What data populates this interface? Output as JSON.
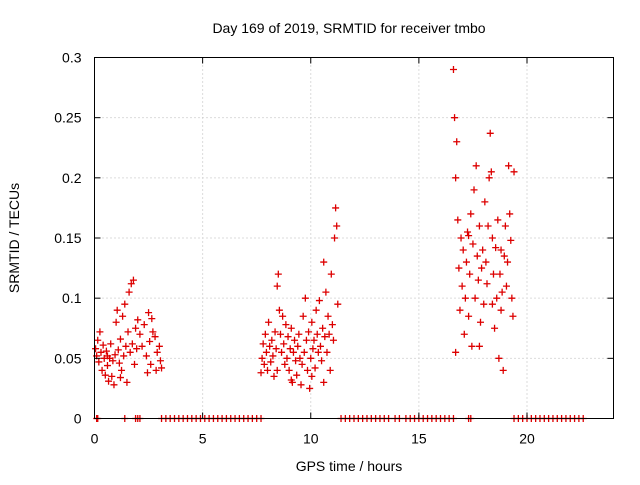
{
  "chart_data": {
    "type": "scatter",
    "title": "Day 169 of 2019, SRMTID for receiver tmbo",
    "xlabel": "GPS time / hours",
    "ylabel": "SRMTID / TECUs",
    "xlim": [
      0,
      24
    ],
    "ylim": [
      0,
      0.3
    ],
    "x_ticks": [
      0,
      5,
      10,
      15,
      20
    ],
    "x_tick_labels": [
      "0",
      "5",
      "10",
      "15",
      "20"
    ],
    "y_ticks": [
      0,
      0.05,
      0.1,
      0.15,
      0.2,
      0.25,
      0.3
    ],
    "y_tick_labels": [
      "0",
      "0.05",
      "0.1",
      "0.15",
      "0.2",
      "0.25",
      "0.3"
    ],
    "grid": true,
    "marker": "+",
    "color": "#dd0000",
    "series": [
      {
        "name": "SRMTID",
        "points": [
          [
            0.05,
            0.058
          ],
          [
            0.1,
            0.052
          ],
          [
            0.15,
            0.065
          ],
          [
            0.2,
            0.047
          ],
          [
            0.25,
            0.072
          ],
          [
            0.3,
            0.055
          ],
          [
            0.35,
            0.04
          ],
          [
            0.4,
            0.061
          ],
          [
            0.45,
            0.05
          ],
          [
            0.5,
            0.036
          ],
          [
            0.55,
            0.056
          ],
          [
            0.6,
            0.044
          ],
          [
            0.65,
            0.031
          ],
          [
            0.7,
            0.05
          ],
          [
            0.75,
            0.062
          ],
          [
            0.8,
            0.035
          ],
          [
            0.85,
            0.048
          ],
          [
            0.9,
            0.028
          ],
          [
            0.95,
            0.053
          ],
          [
            1.0,
            0.08
          ],
          [
            1.05,
            0.09
          ],
          [
            1.1,
            0.057
          ],
          [
            1.15,
            0.046
          ],
          [
            1.2,
            0.066
          ],
          [
            1.25,
            0.04
          ],
          [
            1.3,
            0.085
          ],
          [
            1.35,
            0.052
          ],
          [
            1.4,
            0.095
          ],
          [
            1.45,
            0.06
          ],
          [
            1.5,
            0.03
          ],
          [
            1.55,
            0.072
          ],
          [
            1.6,
            0.105
          ],
          [
            1.65,
            0.055
          ],
          [
            1.7,
            0.112
          ],
          [
            1.75,
            0.062
          ],
          [
            1.8,
            0.115
          ],
          [
            1.85,
            0.045
          ],
          [
            1.9,
            0.075
          ],
          [
            1.95,
            0.058
          ],
          [
            2.0,
            0.082
          ],
          [
            2.1,
            0.07
          ],
          [
            2.2,
            0.06
          ],
          [
            2.3,
            0.078
          ],
          [
            2.4,
            0.052
          ],
          [
            2.5,
            0.088
          ],
          [
            2.55,
            0.064
          ],
          [
            2.6,
            0.045
          ],
          [
            2.7,
            0.072
          ],
          [
            2.8,
            0.068
          ],
          [
            2.9,
            0.055
          ],
          [
            3.0,
            0.06
          ],
          [
            3.05,
            0.048
          ],
          [
            3.1,
            0.042
          ],
          [
            0.6,
            0.052
          ],
          [
            1.2,
            0.034
          ],
          [
            2.45,
            0.038
          ],
          [
            2.65,
            0.083
          ],
          [
            2.85,
            0.04
          ],
          [
            7.7,
            0.038
          ],
          [
            7.75,
            0.05
          ],
          [
            7.8,
            0.062
          ],
          [
            7.85,
            0.045
          ],
          [
            7.9,
            0.07
          ],
          [
            7.95,
            0.055
          ],
          [
            8.0,
            0.04
          ],
          [
            8.05,
            0.08
          ],
          [
            8.1,
            0.06
          ],
          [
            8.15,
            0.047
          ],
          [
            8.2,
            0.065
          ],
          [
            8.25,
            0.052
          ],
          [
            8.3,
            0.035
          ],
          [
            8.35,
            0.072
          ],
          [
            8.4,
            0.058
          ],
          [
            8.45,
            0.11
          ],
          [
            8.5,
            0.12
          ],
          [
            8.55,
            0.09
          ],
          [
            8.6,
            0.07
          ],
          [
            8.65,
            0.055
          ],
          [
            8.7,
            0.085
          ],
          [
            8.75,
            0.062
          ],
          [
            8.8,
            0.045
          ],
          [
            8.85,
            0.078
          ],
          [
            8.9,
            0.05
          ],
          [
            8.95,
            0.068
          ],
          [
            9.0,
            0.04
          ],
          [
            9.05,
            0.058
          ],
          [
            9.1,
            0.075
          ],
          [
            9.15,
            0.03
          ],
          [
            9.2,
            0.055
          ],
          [
            9.25,
            0.065
          ],
          [
            9.3,
            0.048
          ],
          [
            9.35,
            0.036
          ],
          [
            9.4,
            0.06
          ],
          [
            9.45,
            0.07
          ],
          [
            9.5,
            0.05
          ],
          [
            9.55,
            0.028
          ],
          [
            9.6,
            0.045
          ],
          [
            9.65,
            0.085
          ],
          [
            9.7,
            0.055
          ],
          [
            9.75,
            0.1
          ],
          [
            9.8,
            0.065
          ],
          [
            9.85,
            0.04
          ],
          [
            9.9,
            0.072
          ],
          [
            9.95,
            0.025
          ],
          [
            10.0,
            0.05
          ],
          [
            10.05,
            0.08
          ],
          [
            10.1,
            0.058
          ],
          [
            10.15,
            0.065
          ],
          [
            10.2,
            0.042
          ],
          [
            10.25,
            0.09
          ],
          [
            10.3,
            0.07
          ],
          [
            10.35,
            0.055
          ],
          [
            10.4,
            0.098
          ],
          [
            10.45,
            0.06
          ],
          [
            10.5,
            0.048
          ],
          [
            10.55,
            0.075
          ],
          [
            10.6,
            0.13
          ],
          [
            10.65,
            0.068
          ],
          [
            10.7,
            0.105
          ],
          [
            10.75,
            0.055
          ],
          [
            10.8,
            0.085
          ],
          [
            10.85,
            0.07
          ],
          [
            10.9,
            0.04
          ],
          [
            10.95,
            0.12
          ],
          [
            11.0,
            0.078
          ],
          [
            11.05,
            0.065
          ],
          [
            11.1,
            0.15
          ],
          [
            11.15,
            0.175
          ],
          [
            11.2,
            0.16
          ],
          [
            11.25,
            0.095
          ],
          [
            8.45,
            0.04
          ],
          [
            9.1,
            0.032
          ],
          [
            10.05,
            0.035
          ],
          [
            10.6,
            0.03
          ],
          [
            16.6,
            0.29
          ],
          [
            16.65,
            0.25
          ],
          [
            16.7,
            0.2
          ],
          [
            16.75,
            0.23
          ],
          [
            16.8,
            0.165
          ],
          [
            16.85,
            0.125
          ],
          [
            16.9,
            0.09
          ],
          [
            16.95,
            0.15
          ],
          [
            17.0,
            0.11
          ],
          [
            17.05,
            0.14
          ],
          [
            17.1,
            0.07
          ],
          [
            17.15,
            0.1
          ],
          [
            17.2,
            0.13
          ],
          [
            17.25,
            0.155
          ],
          [
            17.3,
            0.085
          ],
          [
            17.35,
            0.12
          ],
          [
            17.4,
            0.17
          ],
          [
            17.45,
            0.06
          ],
          [
            17.5,
            0.145
          ],
          [
            17.55,
            0.19
          ],
          [
            17.6,
            0.1
          ],
          [
            17.65,
            0.21
          ],
          [
            17.7,
            0.135
          ],
          [
            17.75,
            0.115
          ],
          [
            17.8,
            0.16
          ],
          [
            17.85,
            0.08
          ],
          [
            17.9,
            0.125
          ],
          [
            17.95,
            0.14
          ],
          [
            18.0,
            0.095
          ],
          [
            18.05,
            0.18
          ],
          [
            18.1,
            0.13
          ],
          [
            18.15,
            0.112
          ],
          [
            18.2,
            0.16
          ],
          [
            18.25,
            0.2
          ],
          [
            18.3,
            0.237
          ],
          [
            18.35,
            0.205
          ],
          [
            18.4,
            0.15
          ],
          [
            18.45,
            0.12
          ],
          [
            18.5,
            0.075
          ],
          [
            18.55,
            0.142
          ],
          [
            18.6,
            0.1
          ],
          [
            18.65,
            0.165
          ],
          [
            18.7,
            0.05
          ],
          [
            18.75,
            0.12
          ],
          [
            18.8,
            0.09
          ],
          [
            18.85,
            0.105
          ],
          [
            18.9,
            0.04
          ],
          [
            18.95,
            0.135
          ],
          [
            19.0,
            0.16
          ],
          [
            19.05,
            0.11
          ],
          [
            19.1,
            0.13
          ],
          [
            19.15,
            0.21
          ],
          [
            19.2,
            0.17
          ],
          [
            19.25,
            0.148
          ],
          [
            19.3,
            0.1
          ],
          [
            19.35,
            0.085
          ],
          [
            19.4,
            0.205
          ],
          [
            16.7,
            0.055
          ],
          [
            17.3,
            0.152
          ],
          [
            17.8,
            0.06
          ],
          [
            18.4,
            0.095
          ],
          [
            18.8,
            0.14
          ],
          [
            0.1,
            0.0
          ],
          [
            0.15,
            0.0
          ],
          [
            1.4,
            0.0
          ],
          [
            1.9,
            0.0
          ],
          [
            2.0,
            0.0
          ],
          [
            2.1,
            0.0
          ],
          [
            3.1,
            0.0
          ],
          [
            3.3,
            0.0
          ],
          [
            3.5,
            0.0
          ],
          [
            3.7,
            0.0
          ],
          [
            3.9,
            0.0
          ],
          [
            4.1,
            0.0
          ],
          [
            4.3,
            0.0
          ],
          [
            4.5,
            0.0
          ],
          [
            4.7,
            0.0
          ],
          [
            4.9,
            0.0
          ],
          [
            5.1,
            0.0
          ],
          [
            5.3,
            0.0
          ],
          [
            5.5,
            0.0
          ],
          [
            5.7,
            0.0
          ],
          [
            5.9,
            0.0
          ],
          [
            6.1,
            0.0
          ],
          [
            6.3,
            0.0
          ],
          [
            6.5,
            0.0
          ],
          [
            6.7,
            0.0
          ],
          [
            6.9,
            0.0
          ],
          [
            7.1,
            0.0
          ],
          [
            7.3,
            0.0
          ],
          [
            7.5,
            0.0
          ],
          [
            7.7,
            0.0
          ],
          [
            11.4,
            0.0
          ],
          [
            11.6,
            0.0
          ],
          [
            11.8,
            0.0
          ],
          [
            12.0,
            0.0
          ],
          [
            12.2,
            0.0
          ],
          [
            12.4,
            0.0
          ],
          [
            12.6,
            0.0
          ],
          [
            12.8,
            0.0
          ],
          [
            13.0,
            0.0
          ],
          [
            13.2,
            0.0
          ],
          [
            13.4,
            0.0
          ],
          [
            13.6,
            0.0
          ],
          [
            13.9,
            0.0
          ],
          [
            14.1,
            0.0
          ],
          [
            14.4,
            0.0
          ],
          [
            14.6,
            0.0
          ],
          [
            14.8,
            0.0
          ],
          [
            15.0,
            0.0
          ],
          [
            15.2,
            0.0
          ],
          [
            15.4,
            0.0
          ],
          [
            15.6,
            0.0
          ],
          [
            15.8,
            0.0
          ],
          [
            16.0,
            0.0
          ],
          [
            16.2,
            0.0
          ],
          [
            16.4,
            0.0
          ],
          [
            16.6,
            0.0
          ],
          [
            17.3,
            0.0
          ],
          [
            17.4,
            0.0
          ],
          [
            19.4,
            0.0
          ],
          [
            19.6,
            0.0
          ],
          [
            19.8,
            0.0
          ],
          [
            20.0,
            0.0
          ],
          [
            20.2,
            0.0
          ],
          [
            20.4,
            0.0
          ],
          [
            20.6,
            0.0
          ],
          [
            20.8,
            0.0
          ],
          [
            21.0,
            0.0
          ],
          [
            21.2,
            0.0
          ],
          [
            21.4,
            0.0
          ],
          [
            21.6,
            0.0
          ],
          [
            21.8,
            0.0
          ],
          [
            22.0,
            0.0
          ],
          [
            22.2,
            0.0
          ],
          [
            22.4,
            0.0
          ],
          [
            22.6,
            0.0
          ]
        ]
      }
    ]
  }
}
